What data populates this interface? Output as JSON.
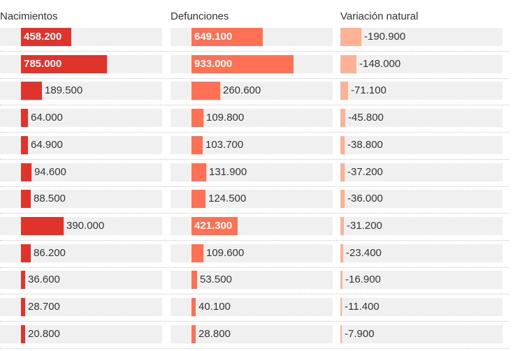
{
  "chart_data": {
    "type": "bar",
    "title": "",
    "series": [
      {
        "name": "Nacimientos",
        "color": "#e0332b",
        "values": [
          458200,
          785000,
          189500,
          64000,
          64900,
          94600,
          88500,
          390000,
          86200,
          36600,
          28700,
          20800
        ],
        "labels": [
          "458.200",
          "785.000",
          "189.500",
          "64.000",
          "64.900",
          "94.600",
          "88.500",
          "390.000",
          "86.200",
          "36.600",
          "28.700",
          "20.800"
        ]
      },
      {
        "name": "Defunciones",
        "color": "#ff7055",
        "values": [
          649100,
          933000,
          260600,
          109800,
          103700,
          131900,
          124500,
          421300,
          109600,
          53500,
          40100,
          28800
        ],
        "labels": [
          "649.100",
          "933.000",
          "260.600",
          "109.800",
          "103.700",
          "131.900",
          "124.500",
          "421.300",
          "109.600",
          "53.500",
          "40.100",
          "28.800"
        ]
      },
      {
        "name": "Variación natural",
        "color": "#ffb196",
        "values": [
          -190900,
          -148000,
          -71100,
          -45800,
          -38800,
          -37200,
          -36000,
          -31200,
          -23400,
          -16900,
          -11400,
          -7900
        ],
        "labels": [
          "-190.900",
          "-148.000",
          "-71.100",
          "-45.800",
          "-38.800",
          "-37.200",
          "-36.000",
          "-31.200",
          "-23.400",
          "-16.900",
          "-11.400",
          "-7.900"
        ]
      }
    ]
  }
}
